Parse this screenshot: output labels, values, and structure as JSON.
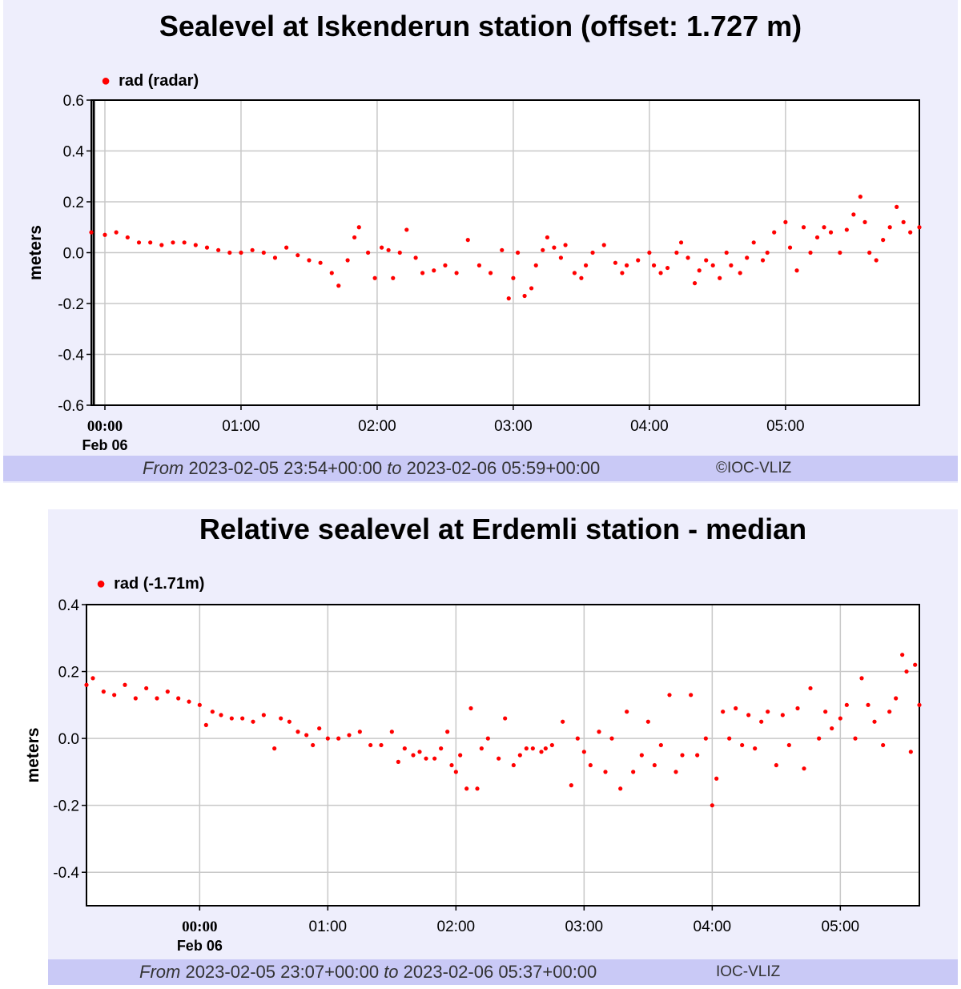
{
  "chart_data": [
    {
      "type": "scatter",
      "title": "Sealevel at Iskenderun station (offset: 1.727 m)",
      "ylabel": "meters",
      "legend": {
        "label": "rad (radar)",
        "placement": "top-left"
      },
      "color": "#ff0000",
      "ylim": [
        -0.6,
        0.6
      ],
      "yticks": [
        "0.6",
        "0.4",
        "0.2",
        "0.0",
        "-0.2",
        "-0.4",
        "-0.6"
      ],
      "xlim": [
        "2023-02-05 23:54",
        "2023-02-06 05:59"
      ],
      "xticks": [
        "00:00",
        "01:00",
        "02:00",
        "03:00",
        "04:00",
        "05:00"
      ],
      "xtick_bold": "00:00",
      "date_label": "Feb 06",
      "footer": {
        "from_word": "From",
        "from": "2023-02-05 23:54+00:00",
        "to_word": "to",
        "to": "2023-02-06 05:59+00:00",
        "credit": "©IOC-VLIZ"
      },
      "series": [
        {
          "name": "rad (radar)",
          "points": [
            [
              "23:54",
              0.08
            ],
            [
              "00:00",
              0.07
            ],
            [
              "00:05",
              0.08
            ],
            [
              "00:10",
              0.06
            ],
            [
              "00:15",
              0.04
            ],
            [
              "00:20",
              0.04
            ],
            [
              "00:25",
              0.03
            ],
            [
              "00:30",
              0.04
            ],
            [
              "00:35",
              0.04
            ],
            [
              "00:40",
              0.03
            ],
            [
              "00:45",
              0.02
            ],
            [
              "00:50",
              0.01
            ],
            [
              "00:55",
              0.0
            ],
            [
              "01:00",
              0.0
            ],
            [
              "01:05",
              0.01
            ],
            [
              "01:10",
              0.0
            ],
            [
              "01:15",
              -0.02
            ],
            [
              "01:20",
              0.02
            ],
            [
              "01:25",
              -0.01
            ],
            [
              "01:30",
              -0.03
            ],
            [
              "01:35",
              -0.04
            ],
            [
              "01:40",
              -0.08
            ],
            [
              "01:43",
              -0.13
            ],
            [
              "01:47",
              -0.03
            ],
            [
              "01:50",
              0.06
            ],
            [
              "01:52",
              0.1
            ],
            [
              "01:56",
              0.0
            ],
            [
              "01:59",
              -0.1
            ],
            [
              "02:02",
              0.02
            ],
            [
              "02:05",
              0.01
            ],
            [
              "02:07",
              -0.1
            ],
            [
              "02:10",
              0.0
            ],
            [
              "02:13",
              0.09
            ],
            [
              "02:17",
              -0.02
            ],
            [
              "02:20",
              -0.08
            ],
            [
              "02:25",
              -0.07
            ],
            [
              "02:30",
              -0.05
            ],
            [
              "02:35",
              -0.08
            ],
            [
              "02:40",
              0.05
            ],
            [
              "02:45",
              -0.05
            ],
            [
              "02:50",
              -0.08
            ],
            [
              "02:55",
              0.01
            ],
            [
              "02:58",
              -0.18
            ],
            [
              "03:00",
              -0.1
            ],
            [
              "03:02",
              0.0
            ],
            [
              "03:05",
              -0.17
            ],
            [
              "03:08",
              -0.14
            ],
            [
              "03:10",
              -0.05
            ],
            [
              "03:13",
              0.01
            ],
            [
              "03:15",
              0.06
            ],
            [
              "03:18",
              0.02
            ],
            [
              "03:21",
              -0.02
            ],
            [
              "03:23",
              0.03
            ],
            [
              "03:27",
              -0.08
            ],
            [
              "03:30",
              -0.1
            ],
            [
              "03:32",
              -0.05
            ],
            [
              "03:35",
              0.0
            ],
            [
              "03:40",
              0.03
            ],
            [
              "03:45",
              -0.04
            ],
            [
              "03:48",
              -0.08
            ],
            [
              "03:50",
              -0.05
            ],
            [
              "03:55",
              -0.03
            ],
            [
              "04:00",
              0.0
            ],
            [
              "04:02",
              -0.05
            ],
            [
              "04:05",
              -0.08
            ],
            [
              "04:08",
              -0.06
            ],
            [
              "04:12",
              0.0
            ],
            [
              "04:14",
              0.04
            ],
            [
              "04:17",
              -0.02
            ],
            [
              "04:20",
              -0.12
            ],
            [
              "04:22",
              -0.07
            ],
            [
              "04:25",
              -0.03
            ],
            [
              "04:28",
              -0.05
            ],
            [
              "04:31",
              -0.1
            ],
            [
              "04:34",
              0.0
            ],
            [
              "04:36",
              -0.05
            ],
            [
              "04:40",
              -0.08
            ],
            [
              "04:43",
              -0.02
            ],
            [
              "04:46",
              0.04
            ],
            [
              "04:50",
              -0.03
            ],
            [
              "04:52",
              0.0
            ],
            [
              "04:55",
              0.08
            ],
            [
              "05:00",
              0.12
            ],
            [
              "05:02",
              0.02
            ],
            [
              "05:05",
              -0.07
            ],
            [
              "05:08",
              0.1
            ],
            [
              "05:11",
              0.0
            ],
            [
              "05:14",
              0.06
            ],
            [
              "05:17",
              0.1
            ],
            [
              "05:20",
              0.08
            ],
            [
              "05:24",
              0.0
            ],
            [
              "05:27",
              0.09
            ],
            [
              "05:30",
              0.15
            ],
            [
              "05:33",
              0.22
            ],
            [
              "05:35",
              0.12
            ],
            [
              "05:37",
              0.0
            ],
            [
              "05:40",
              -0.03
            ],
            [
              "05:43",
              0.05
            ],
            [
              "05:46",
              0.1
            ],
            [
              "05:49",
              0.18
            ],
            [
              "05:52",
              0.12
            ],
            [
              "05:55",
              0.08
            ],
            [
              "05:59",
              0.1
            ]
          ]
        }
      ]
    },
    {
      "type": "scatter",
      "title": "Relative sealevel at Erdemli station - median",
      "ylabel": "meters",
      "legend": {
        "label": "rad (-1.71m)",
        "placement": "top-left"
      },
      "color": "#ff0000",
      "ylim": [
        -0.5,
        0.4
      ],
      "yticks": [
        "0.4",
        "0.2",
        "0.0",
        "-0.2",
        "-0.4"
      ],
      "xlim": [
        "2023-02-05 23:07",
        "2023-02-06 05:37"
      ],
      "xticks": [
        "00:00",
        "01:00",
        "02:00",
        "03:00",
        "04:00",
        "05:00"
      ],
      "xtick_bold": "00:00",
      "date_label": "Feb 06",
      "footer": {
        "from_word": "From",
        "from": "2023-02-05 23:07+00:00",
        "to_word": "to",
        "to": "2023-02-06 05:37+00:00",
        "credit": "IOC-VLIZ"
      },
      "series": [
        {
          "name": "rad (-1.71m)",
          "points": [
            [
              "23:07",
              0.16
            ],
            [
              "23:10",
              0.18
            ],
            [
              "23:15",
              0.14
            ],
            [
              "23:20",
              0.13
            ],
            [
              "23:25",
              0.16
            ],
            [
              "23:30",
              0.12
            ],
            [
              "23:35",
              0.15
            ],
            [
              "23:40",
              0.12
            ],
            [
              "23:45",
              0.14
            ],
            [
              "23:50",
              0.12
            ],
            [
              "23:55",
              0.11
            ],
            [
              "00:00",
              0.1
            ],
            [
              "00:03",
              0.04
            ],
            [
              "00:06",
              0.08
            ],
            [
              "00:10",
              0.07
            ],
            [
              "00:15",
              0.06
            ],
            [
              "00:20",
              0.06
            ],
            [
              "00:25",
              0.05
            ],
            [
              "00:30",
              0.07
            ],
            [
              "00:35",
              -0.03
            ],
            [
              "00:38",
              0.06
            ],
            [
              "00:42",
              0.05
            ],
            [
              "00:46",
              0.02
            ],
            [
              "00:50",
              0.01
            ],
            [
              "00:53",
              -0.02
            ],
            [
              "00:56",
              0.03
            ],
            [
              "01:00",
              0.0
            ],
            [
              "01:05",
              0.0
            ],
            [
              "01:10",
              0.01
            ],
            [
              "01:15",
              0.02
            ],
            [
              "01:20",
              -0.02
            ],
            [
              "01:25",
              -0.02
            ],
            [
              "01:30",
              0.02
            ],
            [
              "01:33",
              -0.07
            ],
            [
              "01:36",
              -0.03
            ],
            [
              "01:40",
              -0.05
            ],
            [
              "01:43",
              -0.04
            ],
            [
              "01:46",
              -0.06
            ],
            [
              "01:50",
              -0.06
            ],
            [
              "01:53",
              -0.03
            ],
            [
              "01:56",
              0.02
            ],
            [
              "01:58",
              -0.08
            ],
            [
              "02:00",
              -0.1
            ],
            [
              "02:02",
              -0.05
            ],
            [
              "02:05",
              -0.15
            ],
            [
              "02:07",
              0.09
            ],
            [
              "02:10",
              -0.15
            ],
            [
              "02:12",
              -0.03
            ],
            [
              "02:15",
              0.0
            ],
            [
              "02:20",
              -0.06
            ],
            [
              "02:23",
              0.06
            ],
            [
              "02:27",
              -0.08
            ],
            [
              "02:30",
              -0.05
            ],
            [
              "02:33",
              -0.03
            ],
            [
              "02:36",
              -0.03
            ],
            [
              "02:40",
              -0.04
            ],
            [
              "02:42",
              -0.03
            ],
            [
              "02:45",
              -0.02
            ],
            [
              "02:50",
              0.05
            ],
            [
              "02:54",
              -0.14
            ],
            [
              "02:57",
              0.0
            ],
            [
              "03:00",
              -0.04
            ],
            [
              "03:03",
              -0.08
            ],
            [
              "03:07",
              0.02
            ],
            [
              "03:10",
              -0.1
            ],
            [
              "03:13",
              0.0
            ],
            [
              "03:17",
              -0.15
            ],
            [
              "03:20",
              0.08
            ],
            [
              "03:23",
              -0.1
            ],
            [
              "03:27",
              -0.05
            ],
            [
              "03:30",
              0.05
            ],
            [
              "03:33",
              -0.08
            ],
            [
              "03:36",
              -0.02
            ],
            [
              "03:40",
              0.13
            ],
            [
              "03:43",
              -0.1
            ],
            [
              "03:46",
              -0.05
            ],
            [
              "03:50",
              0.13
            ],
            [
              "03:53",
              -0.05
            ],
            [
              "03:57",
              0.0
            ],
            [
              "04:00",
              -0.2
            ],
            [
              "04:02",
              -0.12
            ],
            [
              "04:05",
              0.08
            ],
            [
              "04:08",
              0.0
            ],
            [
              "04:11",
              0.09
            ],
            [
              "04:14",
              -0.02
            ],
            [
              "04:17",
              0.07
            ],
            [
              "04:20",
              -0.03
            ],
            [
              "04:23",
              0.05
            ],
            [
              "04:26",
              0.08
            ],
            [
              "04:30",
              -0.08
            ],
            [
              "04:33",
              0.07
            ],
            [
              "04:36",
              -0.02
            ],
            [
              "04:40",
              0.09
            ],
            [
              "04:43",
              -0.09
            ],
            [
              "04:46",
              0.15
            ],
            [
              "04:50",
              0.0
            ],
            [
              "04:53",
              0.08
            ],
            [
              "04:56",
              0.03
            ],
            [
              "05:00",
              0.06
            ],
            [
              "05:03",
              0.1
            ],
            [
              "05:07",
              0.0
            ],
            [
              "05:10",
              0.18
            ],
            [
              "05:13",
              0.1
            ],
            [
              "05:16",
              0.05
            ],
            [
              "05:20",
              -0.02
            ],
            [
              "05:23",
              0.08
            ],
            [
              "05:26",
              0.12
            ],
            [
              "05:29",
              0.25
            ],
            [
              "05:31",
              0.2
            ],
            [
              "05:33",
              -0.04
            ],
            [
              "05:35",
              0.22
            ],
            [
              "05:37",
              0.1
            ]
          ]
        }
      ]
    }
  ]
}
